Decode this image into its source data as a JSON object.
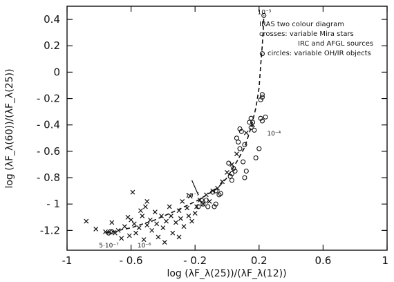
{
  "chart_data": {
    "type": "scatter",
    "xlabel": "log (λF_λ(25))/(λF_λ(12))",
    "ylabel": "log (λF_λ(60))/(λF_λ(25))",
    "xlim": [
      -1.0,
      1.0
    ],
    "ylim": [
      -1.35,
      0.5
    ],
    "x_ticks": [
      -1,
      -0.6,
      -0.2,
      0.2,
      0.6,
      1
    ],
    "x_tick_labels": [
      "-1",
      "- 0.6",
      "- 0.2",
      "0.2",
      "0.6",
      "1"
    ],
    "y_ticks": [
      0.4,
      0.2,
      0,
      -0.2,
      -0.4,
      -0.6,
      -0.8,
      -1,
      -1.2
    ],
    "y_tick_labels": [
      "0.4",
      "0.2",
      "0",
      "- 0.2",
      "- 0.4",
      "- 0.6",
      "- 0.8",
      "- 1",
      "-1.2"
    ],
    "legend": {
      "placement": "top-right",
      "lines": [
        "IRAS two colour diagram",
        "crosses: variable Mira stars",
        "IRC and AFGL sources",
        "circles: variable OH/IR objects"
      ]
    },
    "series": [
      {
        "name": "variable Mira stars",
        "marker": "cross",
        "points": [
          [
            -0.88,
            -1.13
          ],
          [
            -0.82,
            -1.19
          ],
          [
            -0.76,
            -1.21
          ],
          [
            -0.72,
            -1.14
          ],
          [
            -0.7,
            -1.22
          ],
          [
            -0.68,
            -1.2
          ],
          [
            -0.66,
            -1.26
          ],
          [
            -0.64,
            -1.17
          ],
          [
            -0.62,
            -1.1
          ],
          [
            -0.61,
            -1.24
          ],
          [
            -0.6,
            -1.12
          ],
          [
            -0.58,
            -1.15
          ],
          [
            -0.57,
            -1.22
          ],
          [
            -0.55,
            -1.18
          ],
          [
            -0.53,
            -1.09
          ],
          [
            -0.52,
            -1.27
          ],
          [
            -0.51,
            -1.02
          ],
          [
            -0.5,
            -1.16
          ],
          [
            -0.48,
            -1.12
          ],
          [
            -0.47,
            -1.2
          ],
          [
            -0.45,
            -1.06
          ],
          [
            -0.44,
            -1.15
          ],
          [
            -0.43,
            -1.25
          ],
          [
            -0.41,
            -1.09
          ],
          [
            -0.4,
            -1.18
          ],
          [
            -0.39,
            -1.29
          ],
          [
            -0.38,
            -1.13
          ],
          [
            -0.36,
            -1.02
          ],
          [
            -0.35,
            -1.09
          ],
          [
            -0.34,
            -1.22
          ],
          [
            -0.32,
            -1.14
          ],
          [
            -0.3,
            -1.05
          ],
          [
            -0.29,
            -1.11
          ],
          [
            -0.27,
            -1.17
          ],
          [
            -0.25,
            -1.03
          ],
          [
            -0.24,
            -1.09
          ],
          [
            -0.23,
            -0.94
          ],
          [
            -0.22,
            -1.13
          ],
          [
            -0.2,
            -1.07
          ],
          [
            -0.19,
            -1.02
          ],
          [
            -0.17,
            -0.97
          ],
          [
            -0.15,
            -1.0
          ],
          [
            -0.13,
            -0.93
          ],
          [
            -0.11,
            -0.98
          ],
          [
            -0.09,
            -0.9
          ],
          [
            -0.06,
            -0.88
          ],
          [
            -0.03,
            -0.83
          ],
          [
            0.0,
            -0.76
          ],
          [
            0.03,
            -0.7
          ],
          [
            0.06,
            -0.62
          ],
          [
            0.12,
            -0.46
          ],
          [
            0.16,
            -0.4
          ],
          [
            -0.28,
            -0.98
          ],
          [
            -0.3,
            -1.25
          ],
          [
            -0.59,
            -0.91
          ],
          [
            -0.54,
            -1.05
          ],
          [
            -0.5,
            -0.98
          ]
        ]
      },
      {
        "name": "variable OH/IR objects",
        "marker": "circle",
        "points": [
          [
            -0.73,
            -1.21
          ],
          [
            -0.74,
            -1.22
          ],
          [
            -0.72,
            -1.21
          ],
          [
            -0.18,
            -1.02
          ],
          [
            -0.15,
            -1.0
          ],
          [
            -0.13,
            -0.97
          ],
          [
            -0.12,
            -1.02
          ],
          [
            -0.16,
            -0.97
          ],
          [
            -0.08,
            -1.02
          ],
          [
            -0.07,
            -1.0
          ],
          [
            -0.05,
            -0.93
          ],
          [
            -0.04,
            -0.92
          ],
          [
            -0.09,
            -0.91
          ],
          [
            -0.07,
            -0.9
          ],
          [
            0.01,
            -0.69
          ],
          [
            0.02,
            -0.79
          ],
          [
            0.03,
            -0.77
          ],
          [
            0.04,
            -0.73
          ],
          [
            0.05,
            -0.75
          ],
          [
            0.06,
            -0.5
          ],
          [
            0.07,
            -0.53
          ],
          [
            0.08,
            -0.43
          ],
          [
            0.09,
            -0.45
          ],
          [
            0.08,
            -0.58
          ],
          [
            0.11,
            -0.55
          ],
          [
            0.1,
            -0.68
          ],
          [
            0.12,
            -0.75
          ],
          [
            0.11,
            -0.8
          ],
          [
            0.03,
            -0.82
          ],
          [
            0.14,
            -0.38
          ],
          [
            0.15,
            -0.35
          ],
          [
            0.16,
            -0.38
          ],
          [
            0.17,
            -0.44
          ],
          [
            0.15,
            -0.42
          ],
          [
            0.18,
            -0.65
          ],
          [
            0.2,
            -0.58
          ],
          [
            0.21,
            -0.35
          ],
          [
            0.22,
            -0.37
          ],
          [
            0.24,
            -0.34
          ],
          [
            0.22,
            -0.19
          ],
          [
            0.21,
            -0.21
          ],
          [
            0.22,
            -0.17
          ],
          [
            0.22,
            0.14
          ],
          [
            0.23,
            0.43
          ]
        ]
      },
      {
        "name": "dashed track",
        "marker": "line",
        "points": [
          [
            -0.76,
            -1.22
          ],
          [
            -0.6,
            -1.18
          ],
          [
            -0.45,
            -1.12
          ],
          [
            -0.3,
            -1.04
          ],
          [
            -0.18,
            -0.97
          ],
          [
            -0.06,
            -0.88
          ],
          [
            0.0,
            -0.8
          ],
          [
            0.06,
            -0.68
          ],
          [
            0.11,
            -0.57
          ],
          [
            0.15,
            -0.42
          ],
          [
            0.18,
            -0.27
          ],
          [
            0.2,
            -0.12
          ],
          [
            0.21,
            0.05
          ],
          [
            0.22,
            0.2
          ],
          [
            0.225,
            0.3
          ],
          [
            0.23,
            0.43
          ]
        ]
      }
    ],
    "annotations": [
      {
        "text": "10⁻³",
        "x": 0.19,
        "y": 0.44
      },
      {
        "text": "10⁻⁴",
        "x": 0.25,
        "y": -0.48
      },
      {
        "text": "10⁻⁵",
        "x": -0.26,
        "y": -0.95
      },
      {
        "text": "10⁻⁶",
        "x": -0.56,
        "y": -1.33
      },
      {
        "text": "5·10⁻⁷",
        "x": -0.8,
        "y": -1.33
      }
    ],
    "bar_segment": {
      "x1": -0.22,
      "y1": -0.82,
      "x2": -0.18,
      "y2": -0.93
    }
  }
}
